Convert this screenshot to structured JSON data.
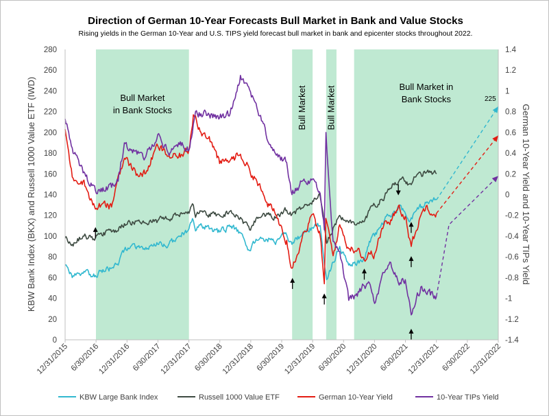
{
  "chart_data": {
    "type": "line",
    "title": "Direction of German 10-Year Forecasts Bull Market in Bank and Value Stocks",
    "subtitle": "Rising yields in the German 10-Year and U.S. TIPS yield forecast bull market in bank and epicenter stocks throughout 2022.",
    "ylabel_left": "KBW Bank Index (BKX) and Russell 1000 Value ETF (IWD)",
    "ylabel_right": "German 10-Year Yield and 10-Year TIPs Yield",
    "xlabel": "",
    "x_tick_labels": [
      "12/31/2015",
      "6/30/2016",
      "12/31/2016",
      "6/30/2017",
      "12/31/2017",
      "6/30/2018",
      "12/31/2018",
      "6/30/2019",
      "12/31/2019",
      "6/30/2020",
      "12/31/2020",
      "6/30/2021",
      "12/31/2021",
      "6/30/2022",
      "12/31/2022"
    ],
    "ylim_left": [
      0,
      280
    ],
    "yticks_left": [
      0,
      20,
      40,
      60,
      80,
      100,
      120,
      140,
      160,
      180,
      200,
      220,
      240,
      260,
      280
    ],
    "ylim_right": [
      -1.4,
      1.4
    ],
    "yticks_right": [
      "-1.4",
      "-1.2",
      "-1",
      "-0.8",
      "-0.6",
      "-0.4",
      "-0.2",
      "0",
      "0.2",
      "0.4",
      "0.6",
      "0.8",
      "1",
      "1.2",
      "1.4"
    ],
    "grid": false,
    "legend_position": "bottom",
    "shaded_regions": [
      {
        "start": "2016-06-30",
        "end": "2017-12-31",
        "label_lines": [
          "Bull Market",
          "in Bank Stocks"
        ],
        "orientation": "horizontal"
      },
      {
        "start": "2019-09-01",
        "end": "2019-12-31",
        "label_lines": [
          "Bull Market"
        ],
        "orientation": "vertical"
      },
      {
        "start": "2020-03-20",
        "end": "2020-05-20",
        "label_lines": [
          "Bull Market"
        ],
        "orientation": "vertical"
      },
      {
        "start": "2020-09-01",
        "end": "2022-12-31",
        "label_lines": [
          "Bull Market in",
          "Bank Stocks"
        ],
        "orientation": "horizontal"
      }
    ],
    "shade_color": "#bfe9d2",
    "series": [
      {
        "name": "KBW Large Bank Index",
        "color": "#31b8cf",
        "axis": "left",
        "points": [
          [
            "2015-12-31",
            72
          ],
          [
            "2016-02-11",
            60
          ],
          [
            "2016-04-15",
            64
          ],
          [
            "2016-06-27",
            62
          ],
          [
            "2016-07-31",
            67
          ],
          [
            "2016-09-30",
            69
          ],
          [
            "2016-11-08",
            72
          ],
          [
            "2016-12-15",
            87
          ],
          [
            "2017-02-28",
            90
          ],
          [
            "2017-04-15",
            87
          ],
          [
            "2017-06-30",
            92
          ],
          [
            "2017-08-31",
            91
          ],
          [
            "2017-10-31",
            100
          ],
          [
            "2017-12-31",
            107
          ],
          [
            "2018-01-26",
            115
          ],
          [
            "2018-02-08",
            105
          ],
          [
            "2018-03-12",
            112
          ],
          [
            "2018-04-30",
            107
          ],
          [
            "2018-06-30",
            104
          ],
          [
            "2018-08-31",
            109
          ],
          [
            "2018-10-31",
            103
          ],
          [
            "2018-12-24",
            86
          ],
          [
            "2019-01-31",
            97
          ],
          [
            "2019-03-31",
            97
          ],
          [
            "2019-05-31",
            95
          ],
          [
            "2019-07-31",
            101
          ],
          [
            "2019-08-31",
            92
          ],
          [
            "2019-10-31",
            102
          ],
          [
            "2019-12-31",
            108
          ],
          [
            "2020-02-14",
            110
          ],
          [
            "2020-03-23",
            58
          ],
          [
            "2020-04-30",
            75
          ],
          [
            "2020-06-08",
            90
          ],
          [
            "2020-07-31",
            72
          ],
          [
            "2020-09-30",
            74
          ],
          [
            "2020-10-31",
            77
          ],
          [
            "2020-11-30",
            95
          ],
          [
            "2020-12-31",
            100
          ],
          [
            "2021-02-28",
            116
          ],
          [
            "2021-03-31",
            120
          ],
          [
            "2021-05-31",
            130
          ],
          [
            "2021-06-30",
            122
          ],
          [
            "2021-07-19",
            115
          ],
          [
            "2021-08-31",
            124
          ],
          [
            "2021-10-31",
            132
          ],
          [
            "2021-12-31",
            135
          ]
        ],
        "forecast": {
          "start": [
            "2021-12-31",
            135
          ],
          "end": [
            "2022-12-31",
            225
          ],
          "label": "225"
        }
      },
      {
        "name": "Russell 1000 Value ETF",
        "color": "#3d4a41",
        "axis": "left",
        "points": [
          [
            "2015-12-31",
            98
          ],
          [
            "2016-02-11",
            92
          ],
          [
            "2016-04-15",
            100
          ],
          [
            "2016-06-27",
            98
          ],
          [
            "2016-07-31",
            103
          ],
          [
            "2016-09-30",
            104
          ],
          [
            "2016-11-08",
            105
          ],
          [
            "2016-12-15",
            112
          ],
          [
            "2017-02-28",
            115
          ],
          [
            "2017-04-15",
            113
          ],
          [
            "2017-06-30",
            115
          ],
          [
            "2017-08-31",
            116
          ],
          [
            "2017-10-31",
            120
          ],
          [
            "2017-12-31",
            122
          ],
          [
            "2018-01-26",
            130
          ],
          [
            "2018-02-08",
            118
          ],
          [
            "2018-03-12",
            124
          ],
          [
            "2018-04-30",
            121
          ],
          [
            "2018-06-30",
            120
          ],
          [
            "2018-08-31",
            124
          ],
          [
            "2018-10-31",
            118
          ],
          [
            "2018-12-24",
            106
          ],
          [
            "2019-01-31",
            117
          ],
          [
            "2019-03-31",
            120
          ],
          [
            "2019-05-31",
            118
          ],
          [
            "2019-07-31",
            125
          ],
          [
            "2019-08-31",
            121
          ],
          [
            "2019-10-31",
            127
          ],
          [
            "2019-12-31",
            134
          ],
          [
            "2020-02-14",
            138
          ],
          [
            "2020-03-23",
            93
          ],
          [
            "2020-04-30",
            108
          ],
          [
            "2020-06-08",
            120
          ],
          [
            "2020-07-31",
            113
          ],
          [
            "2020-09-30",
            112
          ],
          [
            "2020-10-31",
            114
          ],
          [
            "2020-11-30",
            125
          ],
          [
            "2020-12-31",
            130
          ],
          [
            "2021-02-28",
            138
          ],
          [
            "2021-03-31",
            146
          ],
          [
            "2021-05-31",
            155
          ],
          [
            "2021-06-30",
            153
          ],
          [
            "2021-07-19",
            150
          ],
          [
            "2021-08-31",
            157
          ],
          [
            "2021-10-31",
            161
          ],
          [
            "2021-12-31",
            160
          ]
        ]
      },
      {
        "name": "German 10-Year Yield",
        "color": "#e31b12",
        "axis": "right",
        "points": [
          [
            "2015-12-31",
            0.63
          ],
          [
            "2016-02-11",
            0.17
          ],
          [
            "2016-04-15",
            0.13
          ],
          [
            "2016-06-27",
            -0.14
          ],
          [
            "2016-07-31",
            -0.1
          ],
          [
            "2016-09-30",
            -0.12
          ],
          [
            "2016-11-08",
            0.18
          ],
          [
            "2016-12-15",
            0.35
          ],
          [
            "2017-02-28",
            0.2
          ],
          [
            "2017-04-15",
            0.2
          ],
          [
            "2017-06-30",
            0.47
          ],
          [
            "2017-08-31",
            0.37
          ],
          [
            "2017-10-31",
            0.36
          ],
          [
            "2017-12-31",
            0.43
          ],
          [
            "2018-01-26",
            0.77
          ],
          [
            "2018-02-08",
            0.76
          ],
          [
            "2018-03-12",
            0.6
          ],
          [
            "2018-04-30",
            0.56
          ],
          [
            "2018-06-30",
            0.3
          ],
          [
            "2018-08-31",
            0.33
          ],
          [
            "2018-10-31",
            0.39
          ],
          [
            "2018-12-24",
            0.24
          ],
          [
            "2019-01-31",
            0.15
          ],
          [
            "2019-03-31",
            -0.07
          ],
          [
            "2019-05-31",
            -0.2
          ],
          [
            "2019-07-31",
            -0.44
          ],
          [
            "2019-08-31",
            -0.71
          ],
          [
            "2019-10-31",
            -0.41
          ],
          [
            "2019-12-31",
            -0.19
          ],
          [
            "2020-02-14",
            -0.4
          ],
          [
            "2020-03-09",
            -0.86
          ],
          [
            "2020-03-18",
            -0.23
          ],
          [
            "2020-04-30",
            -0.59
          ],
          [
            "2020-06-08",
            -0.29
          ],
          [
            "2020-07-31",
            -0.52
          ],
          [
            "2020-09-30",
            -0.52
          ],
          [
            "2020-10-31",
            -0.63
          ],
          [
            "2020-11-30",
            -0.57
          ],
          [
            "2020-12-31",
            -0.57
          ],
          [
            "2021-02-28",
            -0.26
          ],
          [
            "2021-03-31",
            -0.29
          ],
          [
            "2021-05-20",
            -0.11
          ],
          [
            "2021-06-30",
            -0.21
          ],
          [
            "2021-08-04",
            -0.5
          ],
          [
            "2021-09-30",
            -0.2
          ],
          [
            "2021-10-31",
            -0.11
          ],
          [
            "2021-12-31",
            -0.18
          ]
        ],
        "forecast": {
          "start": [
            "2021-12-31",
            -0.18
          ],
          "end": [
            "2022-12-31",
            0.57
          ]
        }
      },
      {
        "name": "10-Year TIPs Yield",
        "color": "#7030a0",
        "axis": "right",
        "points": [
          [
            "2015-12-31",
            0.73
          ],
          [
            "2016-02-11",
            0.45
          ],
          [
            "2016-04-15",
            0.21
          ],
          [
            "2016-06-27",
            0.04
          ],
          [
            "2016-07-31",
            0.06
          ],
          [
            "2016-09-30",
            0.07
          ],
          [
            "2016-11-08",
            0.13
          ],
          [
            "2016-12-15",
            0.5
          ],
          [
            "2017-02-28",
            0.39
          ],
          [
            "2017-04-15",
            0.35
          ],
          [
            "2017-06-30",
            0.58
          ],
          [
            "2017-08-31",
            0.4
          ],
          [
            "2017-10-31",
            0.5
          ],
          [
            "2017-12-31",
            0.43
          ],
          [
            "2018-01-26",
            0.68
          ],
          [
            "2018-02-08",
            0.8
          ],
          [
            "2018-03-12",
            0.78
          ],
          [
            "2018-04-30",
            0.77
          ],
          [
            "2018-06-30",
            0.74
          ],
          [
            "2018-08-31",
            0.78
          ],
          [
            "2018-10-31",
            1.15
          ],
          [
            "2018-12-24",
            1.01
          ],
          [
            "2019-01-31",
            0.88
          ],
          [
            "2019-03-31",
            0.58
          ],
          [
            "2019-05-31",
            0.38
          ],
          [
            "2019-07-31",
            0.31
          ],
          [
            "2019-08-31",
            0.0
          ],
          [
            "2019-10-31",
            0.13
          ],
          [
            "2019-12-31",
            0.15
          ],
          [
            "2020-02-14",
            0.01
          ],
          [
            "2020-03-09",
            -0.34
          ],
          [
            "2020-03-19",
            0.6
          ],
          [
            "2020-04-30",
            -0.45
          ],
          [
            "2020-06-08",
            -0.55
          ],
          [
            "2020-07-31",
            -1.02
          ],
          [
            "2020-09-30",
            -0.94
          ],
          [
            "2020-10-31",
            -0.88
          ],
          [
            "2020-11-30",
            -0.85
          ],
          [
            "2020-12-31",
            -1.05
          ],
          [
            "2021-02-28",
            -0.75
          ],
          [
            "2021-03-31",
            -0.65
          ],
          [
            "2021-05-20",
            -0.85
          ],
          [
            "2021-06-30",
            -0.82
          ],
          [
            "2021-08-04",
            -1.16
          ],
          [
            "2021-09-30",
            -0.89
          ],
          [
            "2021-10-31",
            -0.95
          ],
          [
            "2021-12-31",
            -0.98
          ]
        ],
        "forecast": {
          "start": [
            "2021-12-31",
            -0.98
          ],
          "via": [
            "2022-03-15",
            -0.29
          ],
          "end": [
            "2022-12-31",
            0.18
          ]
        }
      }
    ],
    "annotations": [
      {
        "type": "arrow-up",
        "date": "2016-06-27",
        "value": 106
      },
      {
        "type": "arrow-up",
        "date": "2019-09-03",
        "value": 57
      },
      {
        "type": "arrow-up",
        "date": "2020-03-09",
        "value": 42
      },
      {
        "type": "arrow-up",
        "date": "2020-10-31",
        "value": 66
      },
      {
        "type": "arrow-down",
        "date": "2021-05-20",
        "value": 142
      },
      {
        "type": "arrow-up",
        "date": "2021-08-04",
        "value": 111
      },
      {
        "type": "arrow-up",
        "date": "2021-08-04",
        "value": 78
      },
      {
        "type": "arrow-up",
        "date": "2021-08-04",
        "value": 8
      }
    ]
  }
}
